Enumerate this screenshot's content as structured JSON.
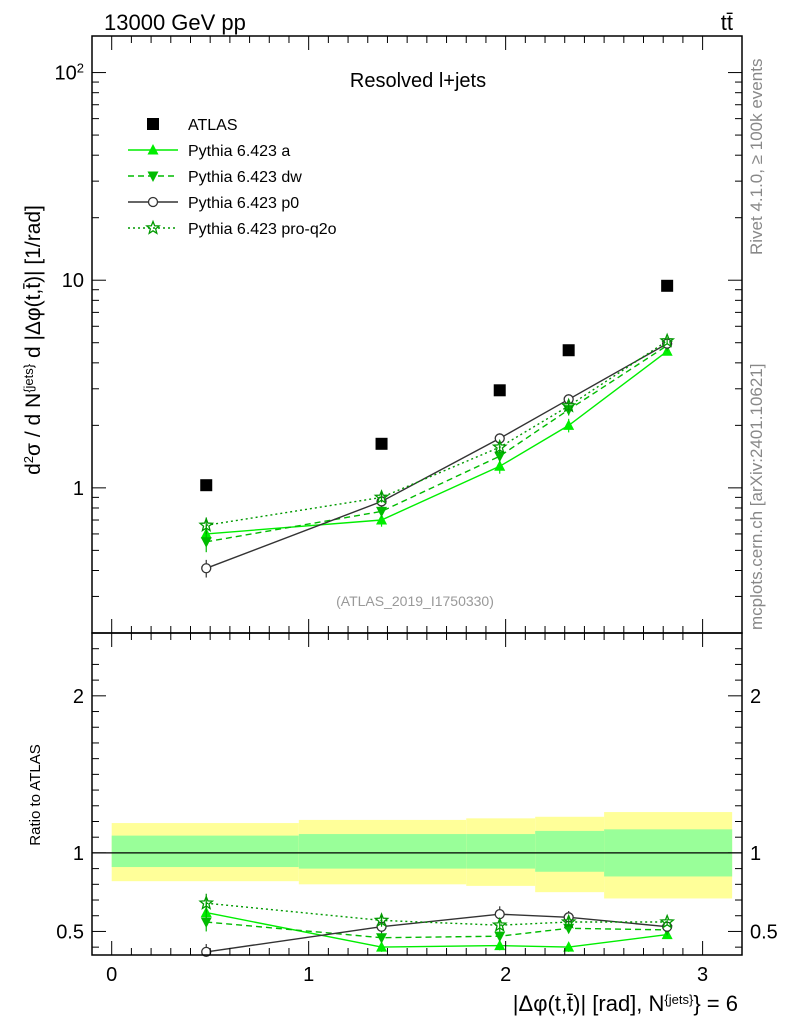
{
  "header": {
    "energy_label": "13000 GeV pp",
    "process_label": "tt̄"
  },
  "side_text": {
    "rivet": "Rivet 4.1.0, ≥ 100k events",
    "source": "mcplots.cern.ch [arXiv:2401.10621]"
  },
  "colors": {
    "data": "#000000",
    "pythia_a": "#00ee00",
    "pythia_dw": "#00bb00",
    "pythia_p0": "#333333",
    "pythia_pro_q2o": "#009900",
    "band_inner": "#99ff99",
    "band_outer": "#ffff99"
  },
  "chart_data": [
    {
      "type": "scatter",
      "panel": "main",
      "title": "Resolved l+jets",
      "analysis_id": "(ATLAS_2019_I1750330)",
      "ylabel": "d²σ / d N^{jets} d |Δφ(t,t̄)| [1/rad]",
      "yscale": "log",
      "ylim": [
        0.2,
        150
      ],
      "xlim": [
        -0.1,
        3.2
      ],
      "y_ticks": [
        {
          "value": 1,
          "label": "1"
        },
        {
          "value": 10,
          "label": "10"
        },
        {
          "value": 100,
          "label": "10²"
        }
      ],
      "legend_position": "top-left",
      "x": [
        0.48,
        1.37,
        1.97,
        2.32,
        2.82
      ],
      "series": [
        {
          "name": "ATLAS",
          "key": "data",
          "marker": "square",
          "line": "none",
          "values": [
            1.03,
            1.63,
            2.95,
            4.6,
            9.4
          ]
        },
        {
          "name": "Pythia 6.423 a",
          "key": "pythia_a",
          "marker": "triangle-up",
          "line": "solid",
          "values": [
            0.6,
            0.7,
            1.27,
            2.0,
            4.55
          ],
          "errors": [
            0.06,
            0.05,
            0.1,
            0.15,
            0.2
          ]
        },
        {
          "name": "Pythia 6.423 dw",
          "key": "pythia_dw",
          "marker": "triangle-down",
          "line": "dashed",
          "values": [
            0.55,
            0.77,
            1.42,
            2.38,
            4.85
          ],
          "errors": [
            0.06,
            0.05,
            0.1,
            0.15,
            0.2
          ]
        },
        {
          "name": "Pythia 6.423 p0",
          "key": "pythia_p0",
          "marker": "circle-open",
          "line": "solid",
          "values": [
            0.41,
            0.86,
            1.73,
            2.67,
            4.95
          ],
          "errors": [
            0.04,
            0.05,
            0.1,
            0.15,
            0.2
          ]
        },
        {
          "name": "Pythia 6.423 pro-q2o",
          "key": "pythia_pro_q2o",
          "marker": "star-open",
          "line": "dotted",
          "values": [
            0.66,
            0.9,
            1.57,
            2.48,
            5.1
          ],
          "errors": [
            0.06,
            0.05,
            0.1,
            0.15,
            0.2
          ]
        }
      ]
    },
    {
      "type": "line",
      "panel": "ratio",
      "ylabel": "Ratio to ATLAS",
      "ylim": [
        0.35,
        2.4
      ],
      "xlim": [
        -0.1,
        3.2
      ],
      "xlabel": "|Δφ(t,t̄)| [rad], N^{jets} = 6",
      "x_ticks": [
        {
          "value": 0,
          "label": "0"
        },
        {
          "value": 1,
          "label": "1"
        },
        {
          "value": 2,
          "label": "2"
        },
        {
          "value": 3,
          "label": "3"
        }
      ],
      "y_ticks": [
        {
          "value": 0.5,
          "label": "0.5"
        },
        {
          "value": 1,
          "label": "1"
        },
        {
          "value": 2,
          "label": "2"
        }
      ],
      "bins": [
        {
          "x_low": 0.0,
          "x_high": 0.95,
          "inner": [
            0.91,
            1.11
          ],
          "outer": [
            0.82,
            1.19
          ]
        },
        {
          "x_low": 0.95,
          "x_high": 1.8,
          "inner": [
            0.9,
            1.12
          ],
          "outer": [
            0.8,
            1.21
          ]
        },
        {
          "x_low": 1.8,
          "x_high": 2.15,
          "inner": [
            0.9,
            1.12
          ],
          "outer": [
            0.79,
            1.22
          ]
        },
        {
          "x_low": 2.15,
          "x_high": 2.5,
          "inner": [
            0.88,
            1.14
          ],
          "outer": [
            0.75,
            1.23
          ]
        },
        {
          "x_low": 2.5,
          "x_high": 3.15,
          "inner": [
            0.85,
            1.15
          ],
          "outer": [
            0.71,
            1.26
          ]
        }
      ],
      "x": [
        0.48,
        1.37,
        1.97,
        2.32,
        2.82
      ],
      "series": [
        {
          "name": "Pythia 6.423 a",
          "key": "pythia_a",
          "marker": "triangle-up",
          "line": "solid",
          "values": [
            0.62,
            0.4,
            0.41,
            0.4,
            0.48
          ],
          "errors": [
            0.07,
            0.03,
            0.03,
            0.03,
            0.02
          ]
        },
        {
          "name": "Pythia 6.423 dw",
          "key": "pythia_dw",
          "marker": "triangle-down",
          "line": "dashed",
          "values": [
            0.56,
            0.46,
            0.47,
            0.52,
            0.51
          ],
          "errors": [
            0.06,
            0.03,
            0.03,
            0.03,
            0.02
          ]
        },
        {
          "name": "Pythia 6.423 p0",
          "key": "pythia_p0",
          "marker": "circle-open",
          "line": "solid",
          "values": [
            0.37,
            0.53,
            0.61,
            0.59,
            0.53
          ],
          "errors": [
            0.05,
            0.04,
            0.05,
            0.04,
            0.02
          ]
        },
        {
          "name": "Pythia 6.423 pro-q2o",
          "key": "pythia_pro_q2o",
          "marker": "star-open",
          "line": "dotted",
          "values": [
            0.68,
            0.57,
            0.54,
            0.56,
            0.56
          ],
          "errors": [
            0.06,
            0.04,
            0.04,
            0.03,
            0.02
          ]
        }
      ]
    }
  ]
}
